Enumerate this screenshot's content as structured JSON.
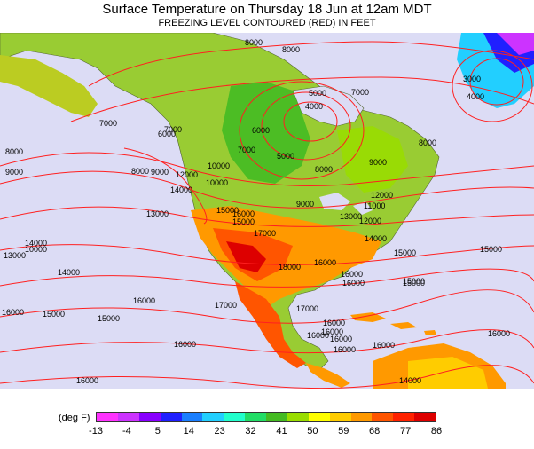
{
  "header": {
    "title": "Surface Temperature on Thursday 18 Jun at 12am MDT",
    "subtitle": "FREEZING LEVEL CONTOURED (RED) IN FEET"
  },
  "legend": {
    "unit": "(deg F)",
    "ticks": [
      "-13",
      "-4",
      "5",
      "14",
      "23",
      "32",
      "41",
      "50",
      "59",
      "68",
      "77",
      "86"
    ],
    "colors": [
      "#ff33ff",
      "#cc33ff",
      "#8800ff",
      "#2020ff",
      "#1a7fff",
      "#22cfff",
      "#22ffcc",
      "#22dd66",
      "#44bb22",
      "#99dd00",
      "#ffff00",
      "#ffcc00",
      "#ff9900",
      "#ff5500",
      "#ff2200",
      "#dd0000"
    ]
  },
  "contours": {
    "color": "#ff2020",
    "labels": [
      "5000",
      "6000",
      "7000",
      "8000",
      "9000",
      "10000",
      "11000",
      "12000",
      "13000",
      "14000",
      "15000",
      "16000",
      "17000",
      "18000",
      "3000",
      "4000"
    ]
  },
  "map": {
    "ocean_color": "#dcdcf5",
    "contour_labels": [
      "8000",
      "8000",
      "7000",
      "5000",
      "4000",
      "3000",
      "4000",
      "6000",
      "5000",
      "7000",
      "8000",
      "9000",
      "6000",
      "7000",
      "8000",
      "9000",
      "10000",
      "12000",
      "14000",
      "11000",
      "13000",
      "10000",
      "15000",
      "16000",
      "15000",
      "17000",
      "9000",
      "13000",
      "12000",
      "14000",
      "12000",
      "14000",
      "15000",
      "15000",
      "18000",
      "16000",
      "16000",
      "15000",
      "13000",
      "14000",
      "10000",
      "8000",
      "9000",
      "16000",
      "15000",
      "15000",
      "16000",
      "17000",
      "16000",
      "16000",
      "16000",
      "17000",
      "16000",
      "16000",
      "15000",
      "16000",
      "14000",
      "16000",
      "16000",
      "16000",
      "16000",
      "8000",
      "7000"
    ]
  }
}
